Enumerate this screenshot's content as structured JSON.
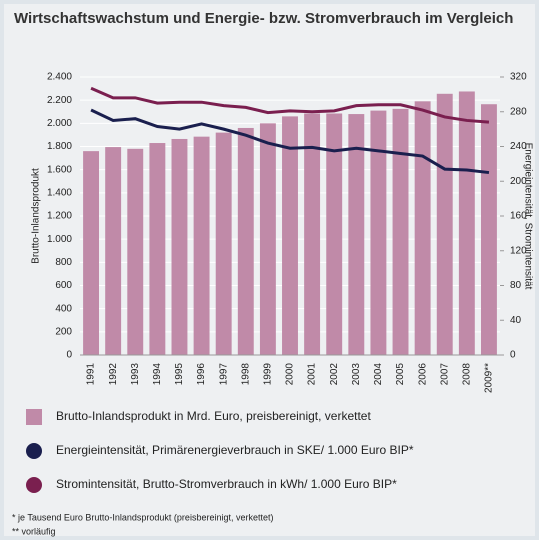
{
  "chart_data": {
    "type": "bar_line",
    "title": "Wirtschaftswachstum und Energie- bzw. Stromverbrauch im Vergleich",
    "ylabel": "Brutto-Inlandsprodukt",
    "y2label": "Energieintensität, Stromintensität",
    "categories": [
      "1991",
      "1992",
      "1993",
      "1994",
      "1995",
      "1996",
      "1997",
      "1998",
      "1999",
      "2000",
      "2001",
      "2002",
      "2003",
      "2004",
      "2005",
      "2006",
      "2007",
      "2008",
      "2009**"
    ],
    "series": [
      {
        "name": "Brutto-Inlandsprodukt in Mrd. Euro, preisbereinigt, verkettet",
        "type": "bar",
        "color": "#c08aa8",
        "values": [
          1760,
          1795,
          1780,
          1830,
          1865,
          1885,
          1920,
          1960,
          2000,
          2060,
          2085,
          2085,
          2080,
          2110,
          2125,
          2190,
          2255,
          2275,
          2165
        ]
      },
      {
        "name": "Energieintensität, Primärenergieverbrauch in SKE/ 1.000 Euro BIP*",
        "type": "line",
        "axis": "y2",
        "color": "#1a1f4e",
        "values": [
          282,
          270,
          272,
          263,
          260,
          266,
          260,
          253,
          244,
          238,
          239,
          235,
          238,
          235,
          232,
          229,
          214,
          213,
          210
        ]
      },
      {
        "name": "Stromintensität, Brutto-Stromverbrauch in kWh/ 1.000 Euro BIP*",
        "type": "line",
        "axis": "y2",
        "color": "#7a1f4f",
        "values": [
          307,
          296,
          296,
          290,
          291,
          291,
          287,
          285,
          279,
          281,
          280,
          281,
          287,
          288,
          288,
          282,
          274,
          270,
          268
        ]
      }
    ],
    "ylim": [
      0,
      2400
    ],
    "yticks": [
      0,
      200,
      400,
      600,
      800,
      {
        "value": 1000,
        "label": "1.000"
      },
      {
        "value": 1200,
        "label": "1.200"
      },
      {
        "value": 1400,
        "label": "1.400"
      },
      {
        "value": 1600,
        "label": "1.600"
      },
      {
        "value": 1800,
        "label": "1.800"
      },
      {
        "value": 2000,
        "label": "2.000"
      },
      {
        "value": 2200,
        "label": "2.200"
      },
      {
        "value": 2400,
        "label": "2.400"
      }
    ],
    "y2lim": [
      0,
      320
    ],
    "y2ticks": [
      0,
      40,
      80,
      120,
      160,
      200,
      240,
      280,
      320
    ],
    "grid": true,
    "footnotes": [
      "* je Tausend Euro Brutto-Inlandsprodukt (preisbereinigt, verkettet)",
      "** vorläufig"
    ]
  }
}
